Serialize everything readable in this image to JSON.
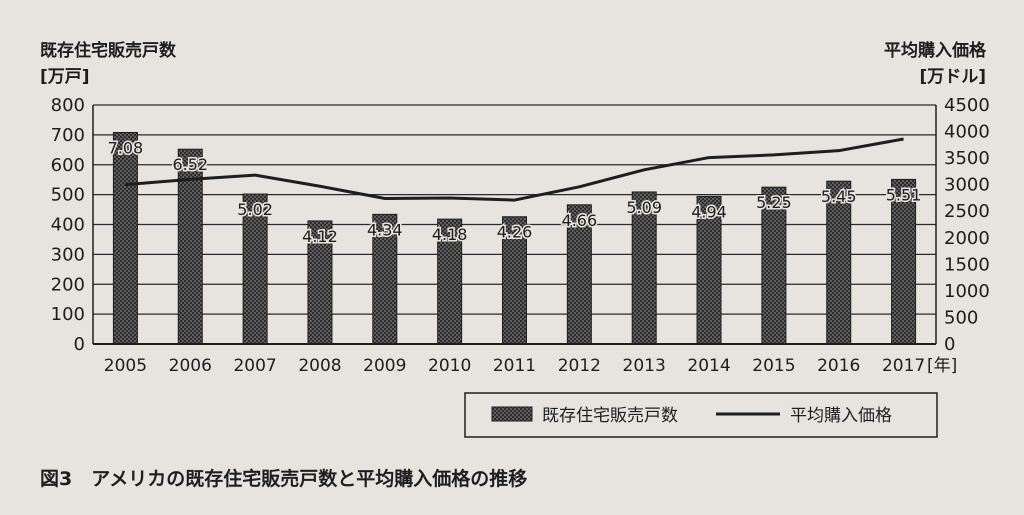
{
  "caption": "図3　アメリカの既存住宅販売戸数と平均購入価格の推移",
  "chart_data": {
    "type": "bar+line",
    "x_unit": "[年]",
    "categories": [
      "2005",
      "2006",
      "2007",
      "2008",
      "2009",
      "2010",
      "2011",
      "2012",
      "2013",
      "2014",
      "2015",
      "2016",
      "2017"
    ],
    "left_axis": {
      "title": "既存住宅販売戸数",
      "unit": "[万戸]",
      "range": [
        0,
        800
      ],
      "ticks": [
        "0",
        "100",
        "200",
        "300",
        "400",
        "500",
        "600",
        "700",
        "800"
      ]
    },
    "right_axis": {
      "title": "平均購入価格",
      "unit": "[万ドル]",
      "range": [
        0,
        4500
      ],
      "ticks": [
        "0",
        "500",
        "1000",
        "1500",
        "2000",
        "2500",
        "3000",
        "3500",
        "4000",
        "4500"
      ]
    },
    "series": [
      {
        "name": "既存住宅販売戸数",
        "kind": "bar",
        "axis": "left",
        "values": [
          708,
          652,
          502,
          412,
          434,
          418,
          426,
          466,
          509,
          494,
          525,
          545,
          551
        ],
        "labels": [
          "7.08",
          "6.52",
          "5.02",
          "4.12",
          "4.34",
          "4.18",
          "4.26",
          "4.66",
          "5.09",
          "4.94",
          "5.25",
          "5.45",
          "5.51"
        ]
      },
      {
        "name": "平均購入価格",
        "kind": "line",
        "axis": "right",
        "values": [
          3000,
          3100,
          3180,
          2970,
          2740,
          2750,
          2710,
          2960,
          3280,
          3510,
          3560,
          3640,
          3860
        ]
      }
    ],
    "grid": "horizontal",
    "legend": "bottom-right"
  }
}
